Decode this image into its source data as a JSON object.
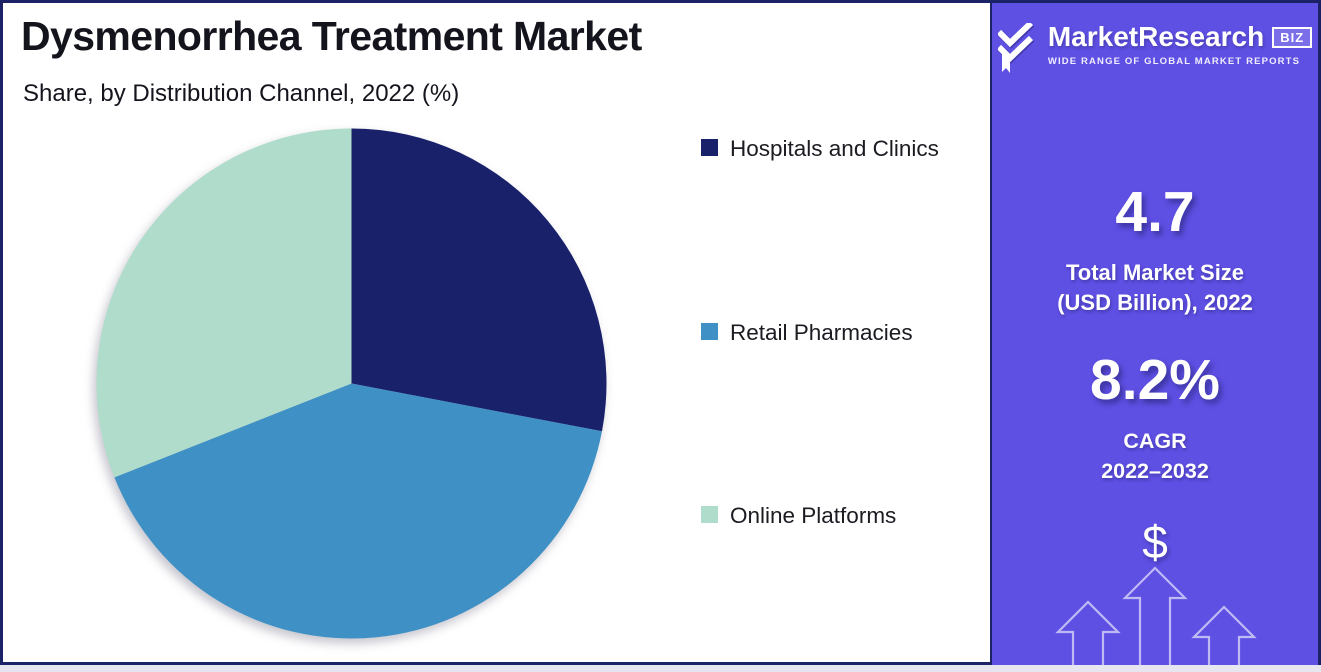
{
  "header": {
    "title": "Dysmenorrhea Treatment Market",
    "subtitle": "Share, by Distribution Channel, 2022 (%)"
  },
  "chart_data": {
    "type": "pie",
    "title": "Dysmenorrhea Treatment Market",
    "subtitle": "Share, by Distribution Channel, 2022 (%)",
    "unit": "%",
    "year": "2022",
    "start_angle_deg": 0,
    "direction": "clockwise",
    "legend_position": "right",
    "values_estimated": true,
    "slices": [
      {
        "label": "Hospitals and Clinics",
        "value": 28,
        "color": "#1A216B"
      },
      {
        "label": "Retail Pharmacies",
        "value": 41,
        "color": "#3F90C5"
      },
      {
        "label": "Online Platforms",
        "value": 31,
        "color": "#AFDCCB"
      }
    ]
  },
  "sidebar": {
    "background_color": "#5F50E4",
    "logo": {
      "icon": "double-check-icon",
      "brand": "MarketResearch",
      "brand_suffix": "BIZ",
      "tagline": "WIDE RANGE OF GLOBAL MARKET REPORTS"
    },
    "stats": [
      {
        "value": "4.7",
        "label_lines": [
          "Total Market Size",
          "(USD Billion), 2022"
        ]
      },
      {
        "value": "8.2%",
        "label_lines": [
          "CAGR",
          "2022–2032"
        ]
      }
    ],
    "dollar_symbol": "$",
    "growth_arrows_icon": "growth-arrows-icon"
  },
  "frame": {
    "border_color": "#1B2265"
  }
}
